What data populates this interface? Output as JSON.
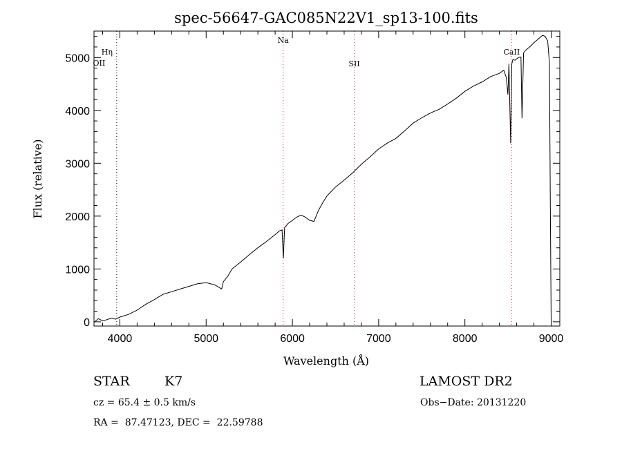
{
  "chart_data": {
    "type": "line",
    "title": "spec-56647-GAC085N22V1_sp13-100.fits",
    "xlabel": "Wavelength (Å)",
    "ylabel": "Flux (relative)",
    "xlim": [
      3700,
      9100
    ],
    "ylim": [
      -80,
      5500
    ],
    "x_ticks": [
      4000,
      5000,
      6000,
      7000,
      8000,
      9000
    ],
    "y_ticks": [
      0,
      1000,
      2000,
      3000,
      4000,
      5000
    ],
    "grid": false,
    "line_color": "#000000",
    "marker_color": "#cc3333",
    "series": [
      {
        "x": [
          3710,
          3750,
          3800,
          3850,
          3900,
          3950,
          4000,
          4100,
          4200,
          4300,
          4400,
          4500,
          4600,
          4700,
          4800,
          4900,
          5000,
          5100,
          5150,
          5180,
          5200,
          5250,
          5300,
          5400,
          5500,
          5600,
          5700,
          5800,
          5850,
          5880,
          5895,
          5910,
          5950,
          6000,
          6050,
          6100,
          6150,
          6200,
          6250,
          6300,
          6350,
          6400,
          6500,
          6600,
          6700,
          6800,
          6900,
          7000,
          7100,
          7200,
          7300,
          7400,
          7500,
          7600,
          7700,
          7800,
          7900,
          8000,
          8100,
          8200,
          8300,
          8400,
          8450,
          8480,
          8498,
          8510,
          8530,
          8542,
          8555,
          8580,
          8620,
          8650,
          8662,
          8680,
          8700,
          8750,
          8800,
          8850,
          8900,
          8930,
          8960,
          8980,
          8990,
          9000
        ],
        "y": [
          0,
          60,
          20,
          40,
          70,
          50,
          90,
          140,
          220,
          330,
          420,
          520,
          570,
          620,
          670,
          720,
          740,
          700,
          650,
          620,
          760,
          860,
          1000,
          1130,
          1270,
          1400,
          1520,
          1650,
          1720,
          1740,
          1200,
          1780,
          1860,
          1920,
          1980,
          2020,
          1980,
          1920,
          1900,
          2100,
          2250,
          2380,
          2550,
          2680,
          2820,
          2980,
          3120,
          3270,
          3380,
          3470,
          3610,
          3760,
          3860,
          3950,
          4020,
          4120,
          4230,
          4360,
          4460,
          4540,
          4640,
          4700,
          4760,
          4620,
          4300,
          4880,
          3380,
          4870,
          4960,
          4950,
          5000,
          5010,
          3850,
          5090,
          5130,
          5200,
          5280,
          5350,
          5420,
          5400,
          5310,
          4900,
          2200,
          0
        ]
      }
    ],
    "annotations": [
      {
        "label": "Hη",
        "wavelength": 3835,
        "marker": false
      },
      {
        "label": "OII",
        "wavelength": 3727,
        "marker": false
      },
      {
        "label": "Na",
        "wavelength": 5893,
        "marker": true
      },
      {
        "label": "SII",
        "wavelength": 6717,
        "marker": true
      },
      {
        "label": "CaII",
        "wavelength": 8542,
        "marker": true
      }
    ]
  },
  "info": {
    "object_class": "STAR",
    "subclass": "K7",
    "survey": "LAMOST DR2",
    "cz": "cz = 65.4 ± 0.5 km/s",
    "obs_date": "Obs−Date: 20131220",
    "coords": "RA =  87.47123, DEC =  22.59788"
  }
}
